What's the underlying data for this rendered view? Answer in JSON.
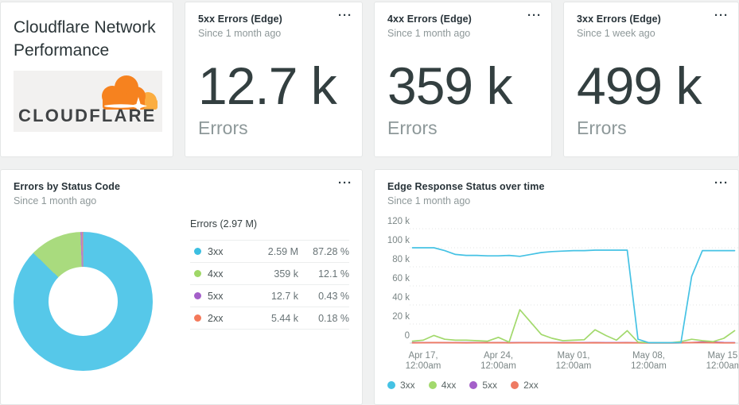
{
  "card_menu_glyph": "···",
  "title_card": {
    "title": "Cloudflare Network Performance",
    "logo_text": "CLOUDFLARE"
  },
  "billboards": [
    {
      "title": "5xx Errors (Edge)",
      "subtitle": "Since 1 month ago",
      "value": "12.7 k",
      "label": "Errors"
    },
    {
      "title": "4xx Errors (Edge)",
      "subtitle": "Since 1 month ago",
      "value": "359 k",
      "label": "Errors"
    },
    {
      "title": "3xx Errors (Edge)",
      "subtitle": "Since 1 week ago",
      "value": "499 k",
      "label": "Errors"
    }
  ],
  "pie_card": {
    "title": "Errors by Status Code",
    "subtitle": "Since 1 month ago",
    "legend_title": "Errors (2.97 M)"
  },
  "line_card": {
    "title": "Edge Response Status over time",
    "subtitle": "Since 1 month ago"
  },
  "colors": {
    "page_bg": "#f0f1f1",
    "card_border": "#e4e6e6",
    "grid_dotted": "#e3e6e6",
    "axis_line": "#d3d6d6"
  },
  "chart_data": [
    {
      "type": "pie",
      "title": "Errors by Status Code",
      "total_label": "Errors (2.97 M)",
      "total_value": 2970000,
      "legend_position": "right",
      "slices": [
        {
          "name": "3xx",
          "value": 2590000,
          "value_label": "2.59 M",
          "pct": 87.28,
          "pct_label": "87.28 %",
          "color": "#3cbfe1",
          "fill": "#56c8e9"
        },
        {
          "name": "4xx",
          "value": 359000,
          "value_label": "359 k",
          "pct": 12.1,
          "pct_label": "12.1 %",
          "color": "#9fd767",
          "fill": "#a9db7e"
        },
        {
          "name": "5xx",
          "value": 12700,
          "value_label": "12.7 k",
          "pct": 0.43,
          "pct_label": "0.43 %",
          "color": "#a45fc9",
          "fill": "#b77fd0"
        },
        {
          "name": "2xx",
          "value": 5440,
          "value_label": "5.44 k",
          "pct": 0.18,
          "pct_label": "0.18 %",
          "color": "#f4795a",
          "fill": "#f58a6b"
        }
      ]
    },
    {
      "type": "line",
      "title": "Edge Response Status over time",
      "x_start": "Apr 16",
      "x_unit": "1 day per point",
      "ylim": [
        0,
        120000
      ],
      "grid": "horizontal-dotted",
      "legend_position": "bottom",
      "y_ticks": [
        "0",
        "20 k",
        "40 k",
        "60 k",
        "80 k",
        "100 k",
        "120 k"
      ],
      "x_ticks": [
        {
          "day": 1,
          "line1": "Apr 17,",
          "line2": "12:00am"
        },
        {
          "day": 8,
          "line1": "Apr 24,",
          "line2": "12:00am"
        },
        {
          "day": 15,
          "line1": "May 01,",
          "line2": "12:00am"
        },
        {
          "day": 22,
          "line1": "May 08,",
          "line2": "12:00am"
        },
        {
          "day": 29,
          "line1": "May 15,",
          "line2": "12:00am"
        }
      ],
      "series": [
        {
          "name": "3xx",
          "color": "#45c2e4",
          "z": 4,
          "values": [
            100000,
            100000,
            100000,
            97000,
            93000,
            92000,
            92000,
            91500,
            91500,
            92000,
            91000,
            93000,
            95000,
            96000,
            96500,
            97000,
            97000,
            97500,
            97500,
            97500,
            97500,
            4000,
            400,
            400,
            400,
            400,
            70000,
            97000,
            97000,
            97000,
            97000
          ]
        },
        {
          "name": "4xx",
          "color": "#a2d96c",
          "z": 3,
          "values": [
            2000,
            3000,
            8000,
            4000,
            3000,
            3000,
            2500,
            2000,
            6000,
            1000,
            35000,
            22000,
            9000,
            5000,
            2500,
            3000,
            3500,
            14000,
            8000,
            3000,
            13000,
            1000,
            400,
            300,
            300,
            1500,
            4000,
            2500,
            1500,
            5000,
            13000
          ]
        },
        {
          "name": "5xx",
          "color": "#a45fc9",
          "z": 1,
          "values": [
            400,
            400,
            500,
            400,
            400,
            400,
            400,
            400,
            500,
            400,
            500,
            500,
            400,
            400,
            400,
            400,
            400,
            500,
            400,
            400,
            500,
            300,
            200,
            200,
            200,
            300,
            600,
            1200,
            1100,
            500,
            400
          ]
        },
        {
          "name": "2xx",
          "color": "#ee7a62",
          "z": 2,
          "values": [
            200,
            300,
            500,
            400,
            300,
            200,
            300,
            300,
            400,
            200,
            300,
            300,
            400,
            300,
            200,
            300,
            200,
            300,
            200,
            200,
            300,
            200,
            100,
            100,
            100,
            200,
            500,
            400,
            300,
            200,
            200
          ]
        }
      ]
    }
  ]
}
